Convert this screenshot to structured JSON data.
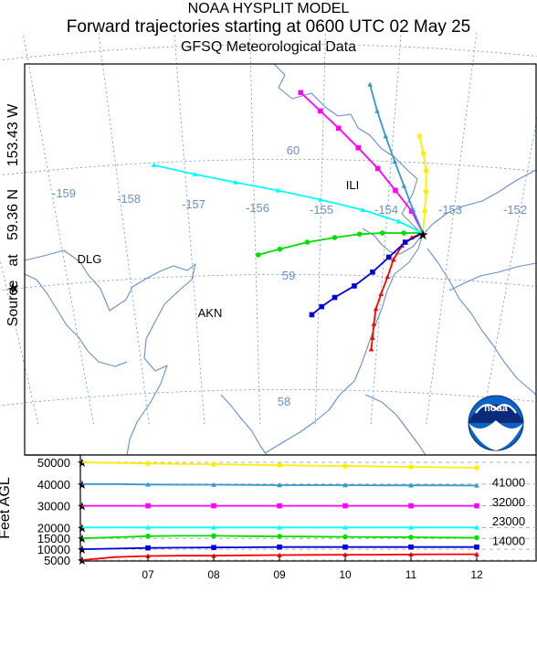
{
  "header": {
    "line1": "NOAA HYSPLIT MODEL",
    "line2": "Forward trajectories starting at 0600 UTC 02 May 25",
    "line3": "GFSQ Meteorological Data"
  },
  "source_label": {
    "source": "Source",
    "star": "★",
    "at": "at",
    "lat": "59.36 N",
    "lon": "153.43 W"
  },
  "map": {
    "lon_labels": [
      "-159",
      "-158",
      "-157",
      "-156",
      "-155",
      "-154",
      "-153",
      "-152"
    ],
    "lat_labels": [
      "60",
      "59",
      "58"
    ],
    "places": [
      "ILI",
      "DLG",
      "AKN"
    ],
    "grid_color": "#6a8fc4"
  },
  "profile": {
    "ylabel": "Feet AGL",
    "left_ticks": [
      "50000",
      "40000",
      "30000",
      "20000",
      "15000",
      "10000",
      "5000"
    ],
    "right_labels": [
      "41000",
      "32000",
      "23000",
      "14000"
    ],
    "x_ticks": [
      "07",
      "08",
      "09",
      "10",
      "11",
      "12"
    ]
  },
  "chart_data": {
    "type": "line",
    "title": "Forward trajectories starting at 0600 UTC 02 May 25",
    "source": {
      "lat": 59.36,
      "lon": -153.43
    },
    "height_axis": {
      "label": "Feet AGL",
      "ylim": [
        5000,
        50000
      ]
    },
    "time_axis": {
      "ticks": [
        "07",
        "08",
        "09",
        "10",
        "11",
        "12"
      ]
    },
    "series": [
      {
        "marker": "triangle",
        "color": "#ff0000",
        "lonlat": [
          [
            -153.43,
            59.36
          ],
          [
            -153.6,
            59.32
          ],
          [
            -153.75,
            59.25
          ],
          [
            -153.88,
            59.13
          ],
          [
            -153.97,
            58.98
          ],
          [
            -154.07,
            58.83
          ],
          [
            -154.15,
            58.7
          ],
          [
            -154.18,
            58.57
          ],
          [
            -154.2,
            58.45
          ],
          [
            -154.22,
            58.35
          ]
        ],
        "height_ft": [
          5000,
          6400,
          6900,
          7000,
          7000,
          7200,
          7300,
          7400,
          7500,
          7500,
          7600,
          7700,
          7700
        ]
      },
      {
        "marker": "square",
        "color": "#0000dd",
        "lonlat": [
          [
            -153.43,
            59.36
          ],
          [
            -153.7,
            59.28
          ],
          [
            -153.95,
            59.15
          ],
          [
            -154.2,
            59.02
          ],
          [
            -154.48,
            58.9
          ],
          [
            -154.78,
            58.8
          ],
          [
            -154.98,
            58.72
          ],
          [
            -155.13,
            58.65
          ]
        ],
        "height_ft": [
          10000,
          10300,
          10600,
          10700,
          10800,
          10900,
          11000,
          11000,
          11000,
          11000,
          11000,
          11000,
          11000
        ]
      },
      {
        "marker": "circle",
        "color": "#00dd00",
        "lonlat": [
          [
            -153.43,
            59.36
          ],
          [
            -153.72,
            59.36
          ],
          [
            -154.05,
            59.36
          ],
          [
            -154.4,
            59.35
          ],
          [
            -154.78,
            59.32
          ],
          [
            -155.2,
            59.28
          ],
          [
            -155.62,
            59.22
          ],
          [
            -155.95,
            59.17
          ]
        ],
        "height_ft": [
          15000,
          15500,
          16000,
          16200,
          16200,
          16000,
          15900,
          15800,
          15700,
          15600,
          15500,
          15400,
          15300
        ]
      },
      {
        "marker": "triangle",
        "color": "#00ffff",
        "lonlat": [
          [
            -153.43,
            59.36
          ],
          [
            -153.8,
            59.46
          ],
          [
            -154.35,
            59.56
          ],
          [
            -155.0,
            59.65
          ],
          [
            -155.65,
            59.73
          ],
          [
            -156.3,
            59.8
          ],
          [
            -156.92,
            59.87
          ],
          [
            -157.55,
            59.95
          ]
        ],
        "height_ft": [
          20000,
          20000,
          20000,
          20000,
          20000,
          20000,
          20000,
          20000,
          20000,
          20000,
          20000,
          20000,
          20000
        ]
      },
      {
        "marker": "square",
        "color": "#ff00ff",
        "lonlat": [
          [
            -153.43,
            59.36
          ],
          [
            -153.6,
            59.55
          ],
          [
            -153.85,
            59.73
          ],
          [
            -154.12,
            59.92
          ],
          [
            -154.42,
            60.1
          ],
          [
            -154.72,
            60.27
          ],
          [
            -155.0,
            60.42
          ],
          [
            -155.3,
            60.58
          ]
        ],
        "height_ft": [
          30000,
          30000,
          30000,
          30000,
          30000,
          30000,
          30000,
          30000,
          30000,
          30000,
          30000,
          30000,
          30000
        ]
      },
      {
        "marker": "triangle",
        "color": "#3399cc",
        "lonlat": [
          [
            -153.43,
            59.36
          ],
          [
            -153.58,
            59.56
          ],
          [
            -153.72,
            59.77
          ],
          [
            -153.86,
            59.98
          ],
          [
            -154.0,
            60.2
          ],
          [
            -154.13,
            60.42
          ],
          [
            -154.24,
            60.65
          ]
        ],
        "height_ft": [
          40000,
          40000,
          39800,
          39700,
          39700,
          39600,
          39500,
          39500,
          39500,
          39400,
          39400,
          39400,
          39300
        ]
      },
      {
        "marker": "circle",
        "color": "#ffee00",
        "lonlat": [
          [
            -153.43,
            59.36
          ],
          [
            -153.4,
            59.55
          ],
          [
            -153.38,
            59.72
          ],
          [
            -153.38,
            59.9
          ],
          [
            -153.42,
            60.05
          ],
          [
            -153.48,
            60.2
          ]
        ],
        "height_ft": [
          50000,
          49700,
          49500,
          49300,
          49100,
          48900,
          48700,
          48500,
          48300,
          48100,
          47900,
          47700,
          47500
        ]
      }
    ]
  }
}
